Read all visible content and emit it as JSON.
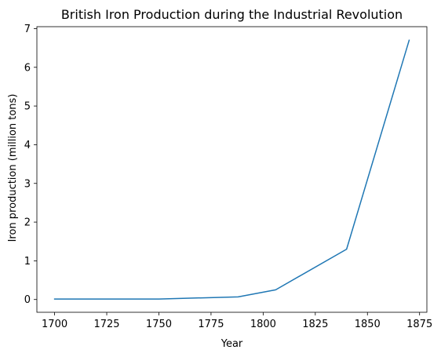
{
  "chart_data": {
    "type": "line",
    "title": "British Iron Production during the Industrial Revolution",
    "xlabel": "Year",
    "ylabel": "Iron production (million tons)",
    "x": [
      1700,
      1750,
      1788,
      1806,
      1840,
      1870
    ],
    "series": [
      {
        "name": "",
        "values": [
          0.012,
          0.013,
          0.068,
          0.25,
          1.3,
          6.7
        ],
        "color": "#1f77b4"
      }
    ],
    "xlim": [
      1691.5,
      1878.5
    ],
    "ylim": [
      -0.33,
      7.05
    ],
    "xticks": [
      1700,
      1725,
      1750,
      1775,
      1800,
      1825,
      1850,
      1875
    ],
    "yticks": [
      0,
      1,
      2,
      3,
      4,
      5,
      6,
      7
    ],
    "grid": false,
    "legend": "none"
  }
}
